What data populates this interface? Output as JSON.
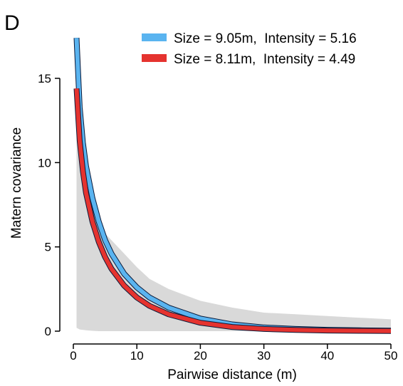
{
  "chart_data": {
    "type": "line",
    "panel_label": "D",
    "xlabel": "Pairwise distance (m)",
    "ylabel": "Matern covariance",
    "xlim": [
      0,
      50
    ],
    "ylim": [
      0,
      17.5
    ],
    "x_ticks": [
      0,
      10,
      20,
      30,
      40,
      50
    ],
    "y_ticks": [
      0,
      5,
      10,
      15
    ],
    "grid": false,
    "legend_position": "top-right",
    "series": [
      {
        "name": "Size = 9.05m,  Intensity = 5.16",
        "color": "#5ab4f0",
        "x": [
          0.5,
          1,
          1.5,
          2,
          3,
          4,
          5,
          6,
          8,
          10,
          12,
          15,
          20,
          25,
          30,
          35,
          40,
          45,
          50
        ],
        "y": [
          17.4,
          13.3,
          11.2,
          9.8,
          7.9,
          6.5,
          5.4,
          4.6,
          3.4,
          2.6,
          2.0,
          1.4,
          0.75,
          0.4,
          0.22,
          0.13,
          0.08,
          0.05,
          0.03
        ]
      },
      {
        "name": "Size = 8.11m,  Intensity = 4.49",
        "color": "#e5332f",
        "x": [
          0.5,
          1,
          1.5,
          2,
          3,
          4,
          5,
          6,
          8,
          10,
          12,
          15,
          20,
          25,
          30,
          35,
          40,
          45,
          50
        ],
        "y": [
          14.4,
          11.3,
          9.5,
          8.2,
          6.5,
          5.3,
          4.4,
          3.7,
          2.7,
          2.0,
          1.5,
          1.0,
          0.5,
          0.25,
          0.13,
          0.07,
          0.04,
          0.02,
          0.01
        ]
      }
    ],
    "envelope": {
      "color": "#d9d9d9",
      "x": [
        0.5,
        1,
        2,
        3,
        4,
        5,
        6,
        8,
        10,
        12,
        15,
        20,
        25,
        30,
        35,
        40,
        45,
        50
      ],
      "upper": [
        17.4,
        13.3,
        9.8,
        7.9,
        6.6,
        5.8,
        5.4,
        4.6,
        3.8,
        3.1,
        2.5,
        1.8,
        1.4,
        1.1,
        1.0,
        0.9,
        0.8,
        0.7
      ],
      "lower": [
        0.2,
        0.1,
        0.05,
        0.02,
        0,
        0,
        0,
        0,
        0,
        0,
        0,
        0,
        0,
        0,
        0,
        0,
        0,
        0
      ]
    }
  }
}
